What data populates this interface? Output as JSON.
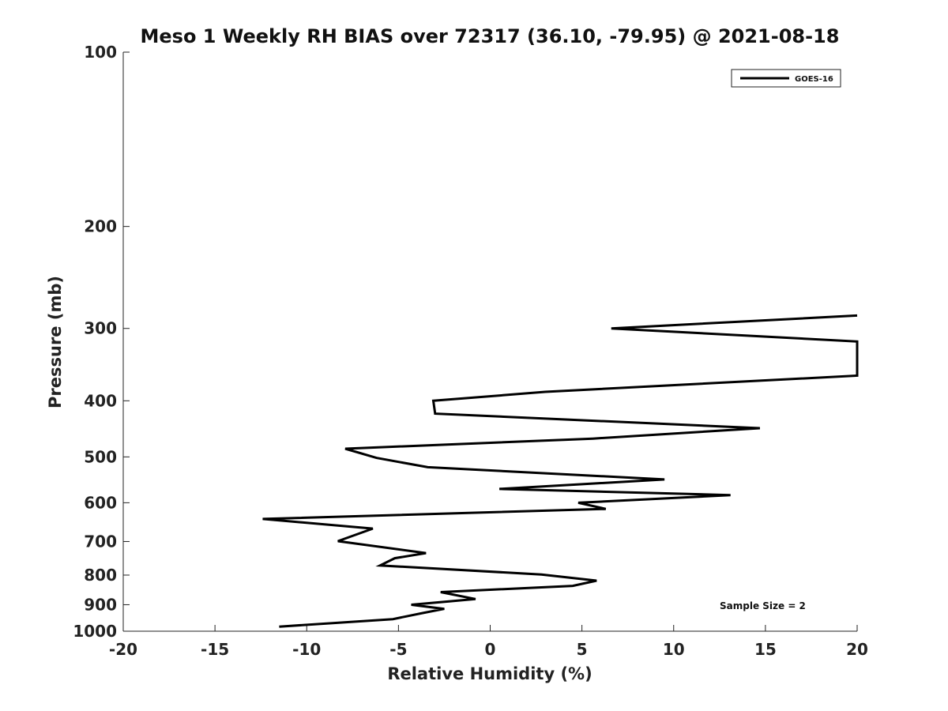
{
  "chart_data": {
    "type": "line",
    "title": "Meso 1 Weekly RH BIAS over 72317 (36.10, -79.95) @ 2021-08-18",
    "xlabel": "Relative Humidity (%)",
    "ylabel": "Pressure (mb)",
    "xlim": [
      -20,
      20
    ],
    "ylim": [
      100,
      1000
    ],
    "y_scale": "log",
    "y_inverted": true,
    "x_ticks": [
      "-20",
      "-15",
      "-10",
      "-5",
      "0",
      "5",
      "10",
      "15",
      "20"
    ],
    "y_ticks": [
      "100",
      "200",
      "300",
      "400",
      "500",
      "600",
      "700",
      "800",
      "900",
      "1000"
    ],
    "grid": false,
    "legend_position": "top-right",
    "series": [
      {
        "name": "GOES-16",
        "color": "#000000",
        "points": [
          {
            "x": 20.0,
            "y": 285
          },
          {
            "x": 6.6,
            "y": 300
          },
          {
            "x": 20.0,
            "y": 316
          },
          {
            "x": 20.0,
            "y": 362
          },
          {
            "x": 3.0,
            "y": 386
          },
          {
            "x": -3.1,
            "y": 400
          },
          {
            "x": -3.0,
            "y": 421
          },
          {
            "x": 14.7,
            "y": 446
          },
          {
            "x": 5.6,
            "y": 465
          },
          {
            "x": -7.9,
            "y": 484
          },
          {
            "x": -6.2,
            "y": 502
          },
          {
            "x": -3.4,
            "y": 521
          },
          {
            "x": 9.5,
            "y": 547
          },
          {
            "x": 0.5,
            "y": 568
          },
          {
            "x": 13.1,
            "y": 582
          },
          {
            "x": 4.8,
            "y": 600
          },
          {
            "x": 6.3,
            "y": 615
          },
          {
            "x": -12.4,
            "y": 640
          },
          {
            "x": -6.4,
            "y": 665
          },
          {
            "x": -8.3,
            "y": 699
          },
          {
            "x": -3.5,
            "y": 733
          },
          {
            "x": -5.2,
            "y": 748
          },
          {
            "x": -6.0,
            "y": 770
          },
          {
            "x": 2.8,
            "y": 798
          },
          {
            "x": 5.8,
            "y": 818
          },
          {
            "x": 4.5,
            "y": 835
          },
          {
            "x": -2.7,
            "y": 856
          },
          {
            "x": -0.8,
            "y": 880
          },
          {
            "x": -4.3,
            "y": 900
          },
          {
            "x": -2.5,
            "y": 915
          },
          {
            "x": -3.6,
            "y": 929
          },
          {
            "x": -5.3,
            "y": 953
          },
          {
            "x": -11.5,
            "y": 982
          }
        ]
      }
    ],
    "annotations": [
      {
        "text": "Sample Size = 2",
        "position": "bottom-right"
      }
    ]
  }
}
